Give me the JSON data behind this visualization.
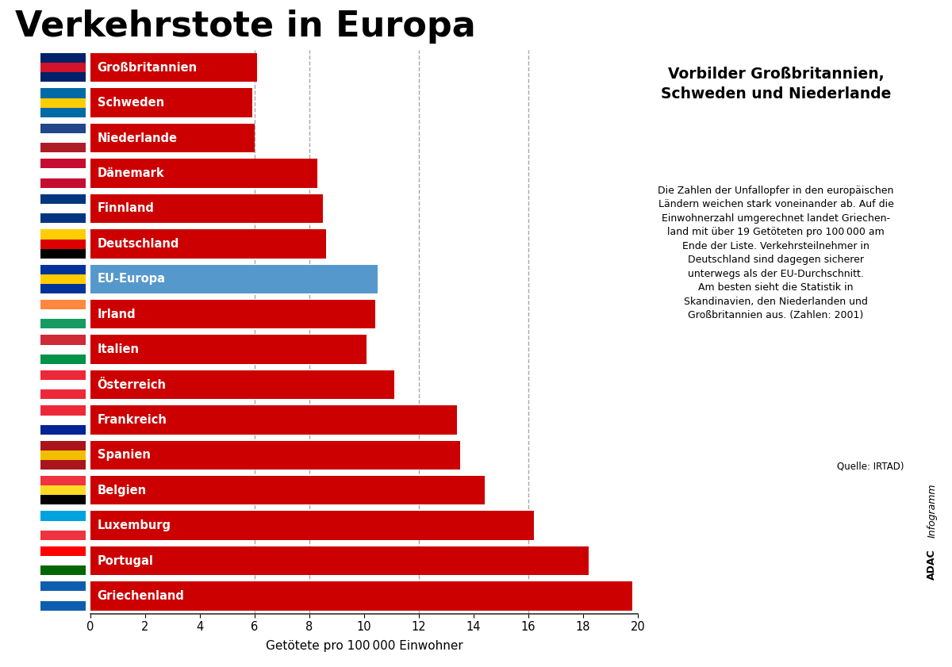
{
  "title": "Verkehrstote in Europa",
  "subtitle": "Vorbilder Großbritannien,\nSchweden und Niederlande",
  "body_text": "Die Zahlen der Unfallopfer in den europäischen\nLändern weichen stark voneinander ab. Auf die\nEinwohnerzahl umgerechnet landet Griechen-\nland mit über 19 Getöteten pro 100 000 am\nEnde der Liste. Verkehrsteilnehmer in\nDeutschland sind dagegen sicherer\nunterwegs als der EU-Durchschnitt.\nAm besten sieht die Statistik in\nSkandinavien, den Niederlanden und\nGroßbritannien aus. (Zahlen: 2001)",
  "source_text": "Quelle: IRTAD)",
  "xlabel": "Getötete pro 100 000 Einwohner",
  "xlim": [
    0,
    20
  ],
  "xticks": [
    0,
    2,
    4,
    6,
    8,
    10,
    12,
    14,
    16,
    18,
    20
  ],
  "categories": [
    "Großbritannien",
    "Schweden",
    "Niederlande",
    "Dänemark",
    "Finnland",
    "Deutschland",
    "EU-Europa",
    "Irland",
    "Italien",
    "Österreich",
    "Frankreich",
    "Spanien",
    "Belgien",
    "Luxemburg",
    "Portugal",
    "Griechenland"
  ],
  "values": [
    6.1,
    5.9,
    6.0,
    8.3,
    8.5,
    8.6,
    10.5,
    10.4,
    10.1,
    11.1,
    13.4,
    13.5,
    14.4,
    16.2,
    18.2,
    19.8
  ],
  "bar_colors": [
    "#cc0000",
    "#cc0000",
    "#cc0000",
    "#cc0000",
    "#cc0000",
    "#cc0000",
    "#5599cc",
    "#cc0000",
    "#cc0000",
    "#cc0000",
    "#cc0000",
    "#cc0000",
    "#cc0000",
    "#cc0000",
    "#cc0000",
    "#cc0000"
  ],
  "flag_colors": [
    [
      "#012169",
      "#cf142b"
    ],
    [
      "#006AA7",
      "#FECC02"
    ],
    [
      "#AE1C28",
      "#FFFFFF",
      "#21468B"
    ],
    [
      "#C60C30",
      "#FFFFFF"
    ],
    [
      "#003580",
      "#FFFFFF"
    ],
    [
      "#000000",
      "#DD0000",
      "#FFCE00"
    ],
    [
      "#003399",
      "#FFCC00"
    ],
    [
      "#169B62",
      "#FFFFFF",
      "#FF883E"
    ],
    [
      "#009246",
      "#FFFFFF",
      "#CE2B37"
    ],
    [
      "#ED2939",
      "#FFFFFF"
    ],
    [
      "#002395",
      "#FFFFFF",
      "#ED2939"
    ],
    [
      "#AA151B",
      "#F1BF00"
    ],
    [
      "#000000",
      "#FDDA24",
      "#EF3340"
    ],
    [
      "#EF3340",
      "#FFFFFF",
      "#00A3E0"
    ],
    [
      "#006600",
      "#FFFFFF",
      "#FF0000"
    ],
    [
      "#0D5EAF",
      "#FFFFFF"
    ]
  ],
  "title_bg_color": "#F5C400",
  "label_text_color": "#ffffff",
  "background_color": "#ffffff",
  "bar_height": 0.82,
  "dashed_lines": [
    6,
    8,
    12,
    16
  ],
  "grid_color": "#999999",
  "adac_bold": "ADAC",
  "adac_italic": "Infogramm"
}
